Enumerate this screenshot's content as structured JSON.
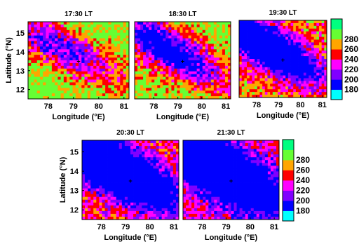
{
  "chart_data": {
    "type": "heatmap",
    "xlabel": "Longitude (°E)",
    "ylabel": "Latitude (°N)",
    "xlim": [
      77.2,
      81.2
    ],
    "ylim": [
      11.5,
      15.6
    ],
    "xticks": [
      78,
      79,
      80,
      81
    ],
    "yticks": [
      12,
      13,
      14,
      15
    ],
    "marker": {
      "x": 79.2,
      "y": 13.5
    },
    "colorbar": {
      "ticks": [
        180,
        200,
        220,
        240,
        260,
        280
      ],
      "colors": [
        "#00ffff",
        "#0000ff",
        "#8000ff",
        "#ff00ff",
        "#ff0000",
        "#ffa500",
        "#66ff33",
        "#00ff80"
      ]
    },
    "panels": [
      {
        "title": "17:30 LT",
        "warm_level": 0.82
      },
      {
        "title": "18:30 LT",
        "warm_level": 0.72
      },
      {
        "title": "19:30 LT",
        "warm_level": 0.56
      },
      {
        "title": "20:30 LT",
        "warm_level": 0.38
      },
      {
        "title": "21:30 LT",
        "warm_level": 0.28
      }
    ]
  }
}
